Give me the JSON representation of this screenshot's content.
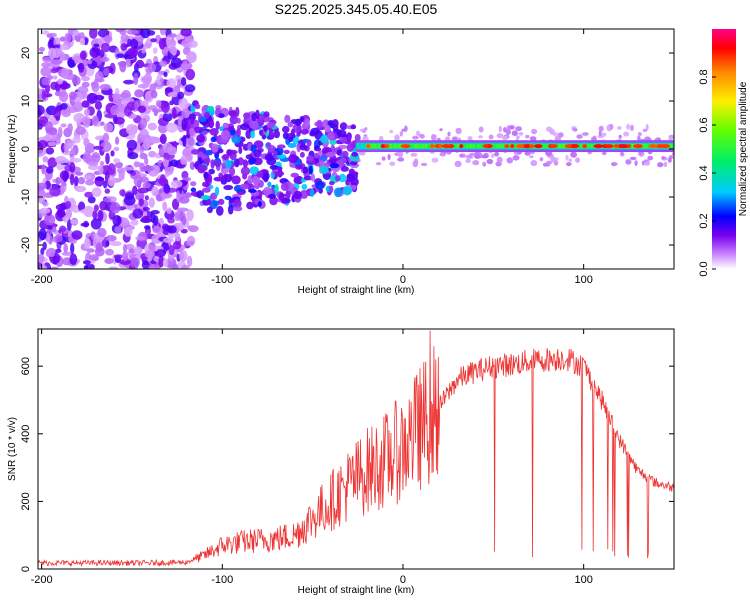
{
  "title": "S225.2025.345.05.40.E05",
  "colors": {
    "snr_line": "#ee3333",
    "axis": "#000000",
    "background": "#ffffff"
  },
  "chart_data": [
    {
      "type": "heatmap",
      "name": "spectrogram",
      "title": "S225.2025.345.05.40.E05",
      "xlabel": "Height of straight line (km)",
      "ylabel": "Frequency (Hz)",
      "xlim": [
        -202,
        150
      ],
      "ylim": [
        -25,
        25
      ],
      "x_ticks": [
        -200,
        -100,
        0,
        100
      ],
      "y_ticks": [
        -20,
        -10,
        0,
        10,
        20
      ],
      "colorbar": {
        "label": "Normalized spectral amplitude",
        "range": [
          0,
          1
        ],
        "ticks": [
          0.0,
          0.2,
          0.4,
          0.6,
          0.8
        ],
        "tick_labels": [
          "0.0",
          "0.2",
          "0.4",
          "0.6",
          "0.8"
        ]
      },
      "regions": [
        {
          "x_range": [
            -202,
            -117
          ],
          "freq_range": [
            -25,
            25
          ],
          "amplitude": "low, scattered noise"
        },
        {
          "x_range": [
            -117,
            -25
          ],
          "freq_range": [
            -8,
            6
          ],
          "amplitude": "0.05-0.35, centered near 0 Hz"
        },
        {
          "x_range": [
            -25,
            150
          ],
          "freq_range": [
            0,
            1.5
          ],
          "amplitude": "0.3-0.9, steady line near 0.5 Hz"
        }
      ]
    },
    {
      "type": "line",
      "name": "snr",
      "title": "",
      "xlabel": "Height of straight line (km)",
      "ylabel": "SNR (10 * v/v)",
      "xlim": [
        -202,
        150
      ],
      "ylim": [
        0,
        710
      ],
      "x_ticks": [
        -200,
        -100,
        0,
        100
      ],
      "y_ticks": [
        0,
        200,
        400,
        600
      ],
      "series": [
        {
          "name": "SNR",
          "x": [
            -202,
            -180,
            -160,
            -140,
            -120,
            -110,
            -100,
            -90,
            -80,
            -70,
            -60,
            -50,
            -40,
            -30,
            -20,
            -10,
            0,
            10,
            20,
            30,
            40,
            50,
            60,
            70,
            80,
            90,
            100,
            110,
            120,
            130,
            140,
            150
          ],
          "y": [
            18,
            18,
            18,
            18,
            20,
            40,
            70,
            80,
            85,
            90,
            100,
            150,
            200,
            250,
            290,
            320,
            360,
            420,
            480,
            560,
            585,
            600,
            605,
            615,
            620,
            625,
            600,
            500,
            380,
            290,
            255,
            240
          ]
        }
      ]
    }
  ]
}
